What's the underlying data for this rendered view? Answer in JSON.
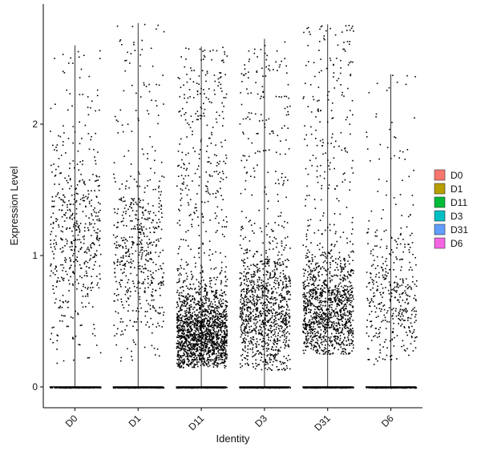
{
  "chart_data": {
    "type": "scatter",
    "subtype": "violin-jitter",
    "xlabel": "Identity",
    "ylabel": "Expression Level",
    "categories": [
      "D0",
      "D1",
      "D11",
      "D3",
      "D31",
      "D6"
    ],
    "ylim": [
      -0.15,
      2.8
    ],
    "yticks": [
      0,
      1,
      2
    ],
    "grid": false,
    "legend": {
      "placement": "right",
      "entries": [
        {
          "label": "D0",
          "color": "#F8766D"
        },
        {
          "label": "D1",
          "color": "#B79F00"
        },
        {
          "label": "D11",
          "color": "#00BA38"
        },
        {
          "label": "D3",
          "color": "#00BFC4"
        },
        {
          "label": "D31",
          "color": "#619CFF"
        },
        {
          "label": "D6",
          "color": "#F564E3"
        }
      ]
    },
    "series": [
      {
        "category": "D0",
        "max": 2.6,
        "points_above_zero": 520,
        "low": 0.18,
        "center": 1.2,
        "spread": 0.65
      },
      {
        "category": "D1",
        "max": 2.77,
        "points_above_zero": 560,
        "low": 0.2,
        "center": 1.0,
        "spread": 0.6
      },
      {
        "category": "D11",
        "max": 2.59,
        "points_above_zero": 1900,
        "low": 0.15,
        "center": 0.4,
        "spread": 0.35
      },
      {
        "category": "D3",
        "max": 2.65,
        "points_above_zero": 1150,
        "low": 0.13,
        "center": 0.6,
        "spread": 0.45
      },
      {
        "category": "D31",
        "max": 2.76,
        "points_above_zero": 1300,
        "low": 0.25,
        "center": 0.58,
        "spread": 0.4
      },
      {
        "category": "D6",
        "max": 2.38,
        "points_above_zero": 420,
        "low": 0.17,
        "center": 0.7,
        "spread": 0.5
      }
    ],
    "marker_color": "#000000"
  }
}
